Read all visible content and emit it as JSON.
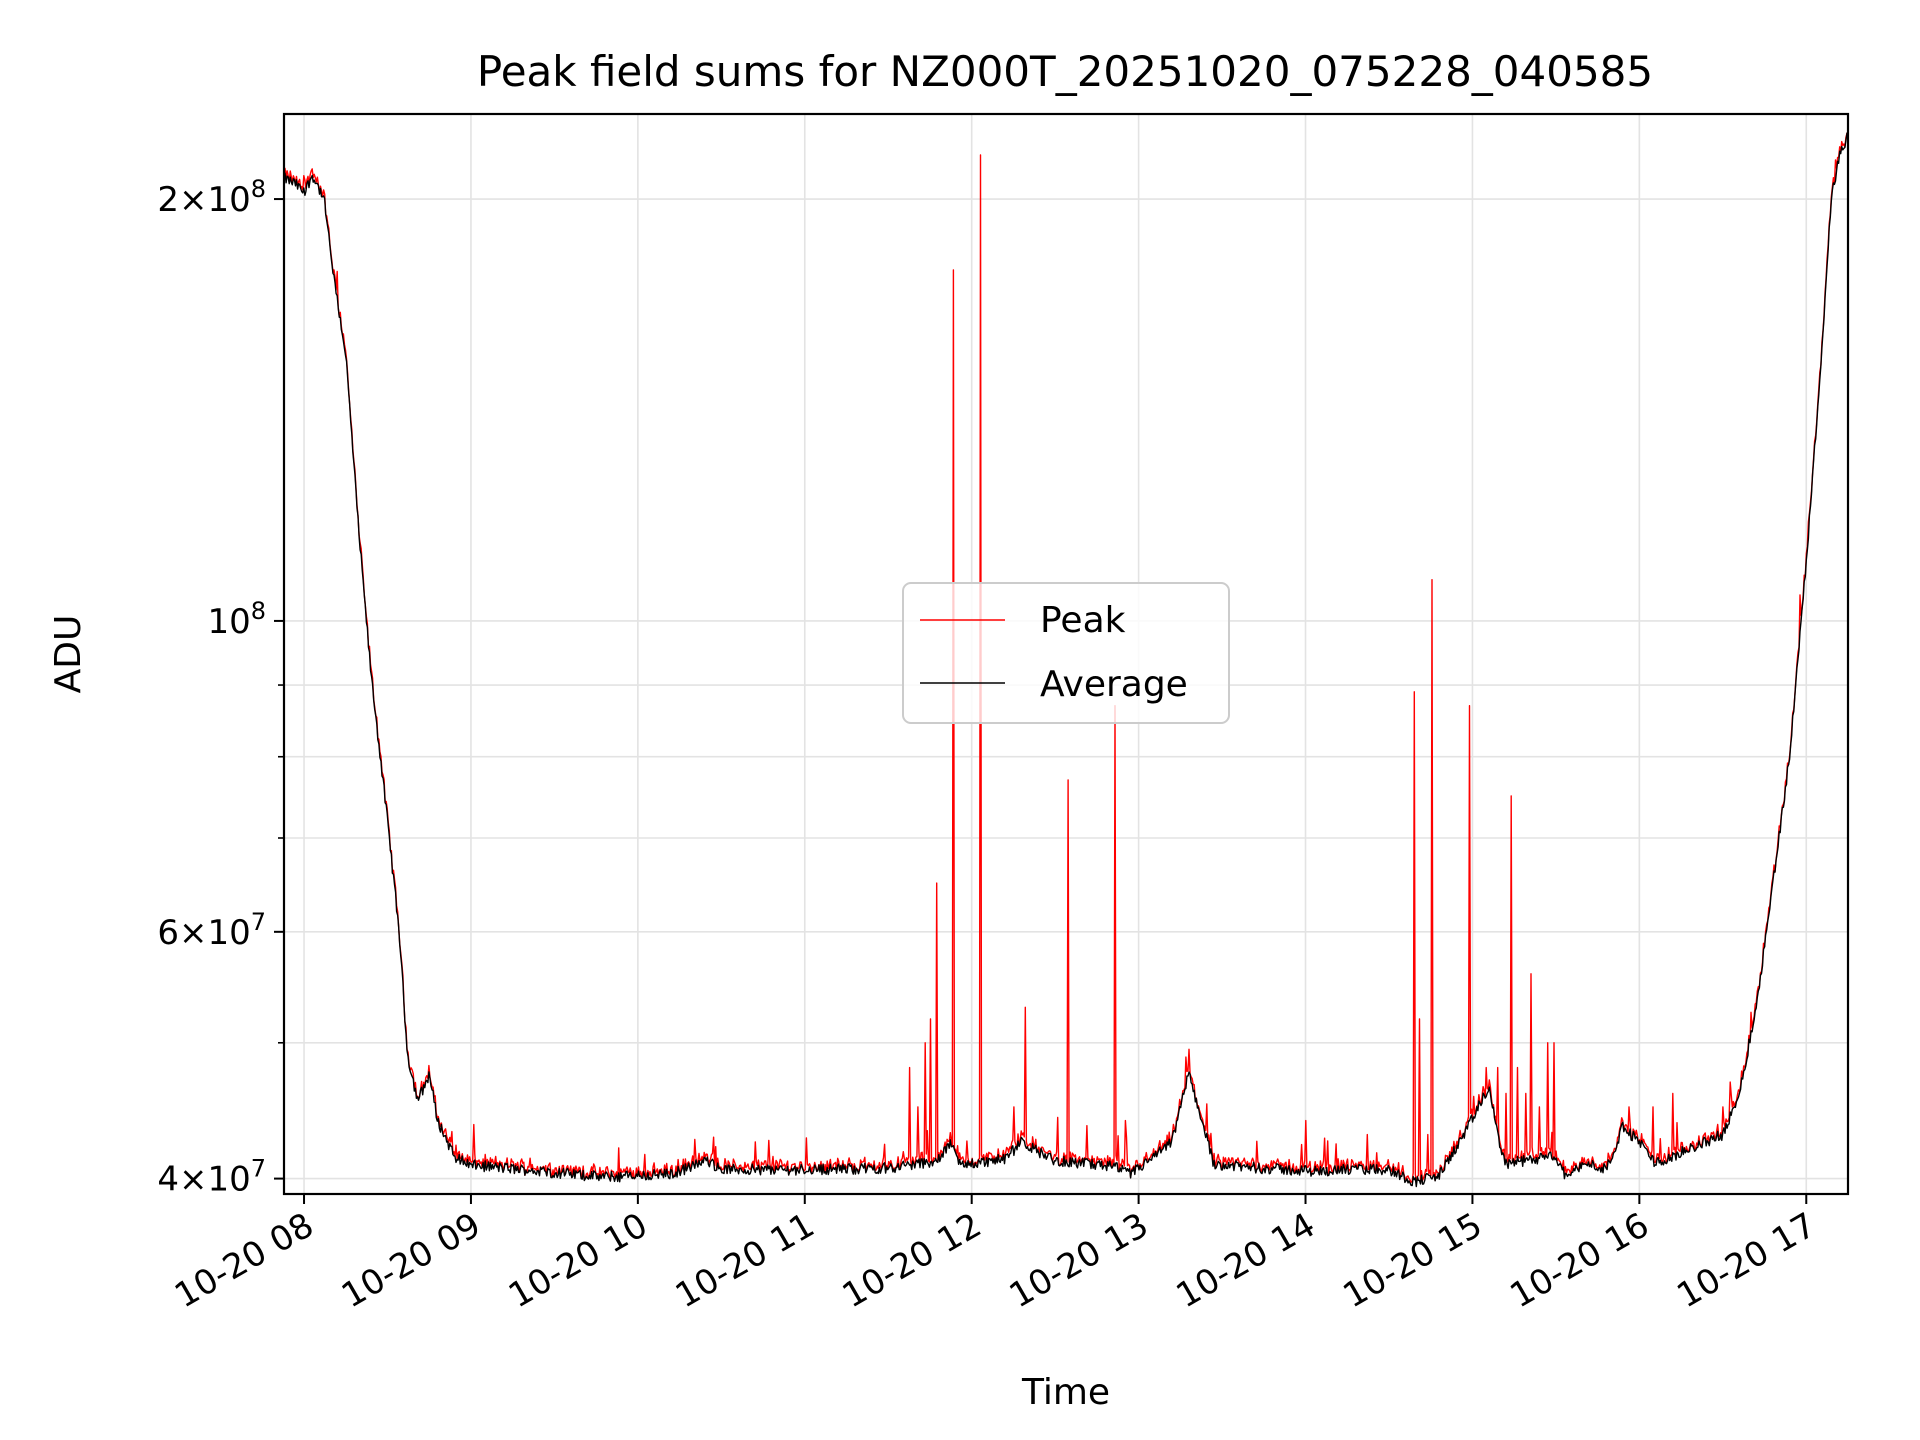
{
  "chart_data": {
    "type": "line",
    "title": "Peak field sums for NZ000T_20251020_075228_040585",
    "xlabel": "Time",
    "ylabel": "ADU",
    "yscale": "log",
    "grid": true,
    "legend_position": "center",
    "xlim_hours": [
      7.88,
      17.25
    ],
    "ylim": [
      39000000,
      230000000
    ],
    "x_ticks": [
      {
        "hour": 8,
        "label": "10-20 08"
      },
      {
        "hour": 9,
        "label": "10-20 09"
      },
      {
        "hour": 10,
        "label": "10-20 10"
      },
      {
        "hour": 11,
        "label": "10-20 11"
      },
      {
        "hour": 12,
        "label": "10-20 12"
      },
      {
        "hour": 13,
        "label": "10-20 13"
      },
      {
        "hour": 14,
        "label": "10-20 14"
      },
      {
        "hour": 15,
        "label": "10-20 15"
      },
      {
        "hour": 16,
        "label": "10-20 16"
      },
      {
        "hour": 17,
        "label": "10-20 17"
      }
    ],
    "y_major_ticks": [
      {
        "value": 40000000,
        "mantissa": "4",
        "exp": "7"
      },
      {
        "value": 60000000,
        "mantissa": "6",
        "exp": "7"
      },
      {
        "value": 100000000,
        "mantissa": "",
        "exp": "8"
      },
      {
        "value": 200000000,
        "mantissa": "2",
        "exp": "8"
      }
    ],
    "y_minor_ticks": [
      50000000,
      70000000,
      80000000,
      90000000
    ],
    "series": [
      {
        "name": "Peak",
        "color": "#ff0000",
        "spikes": [
          [
            11.63,
            48000000
          ],
          [
            11.68,
            45000000
          ],
          [
            11.72,
            50000000
          ],
          [
            11.75,
            52000000
          ],
          [
            11.79,
            65000000
          ],
          [
            11.89,
            178000000
          ],
          [
            12.05,
            215000000
          ],
          [
            12.25,
            45000000
          ],
          [
            12.32,
            53000000
          ],
          [
            12.58,
            77000000
          ],
          [
            12.86,
            87000000
          ],
          [
            12.92,
            44000000
          ],
          [
            14.0,
            44000000
          ],
          [
            14.37,
            43000000
          ],
          [
            14.65,
            89000000
          ],
          [
            14.68,
            52000000
          ],
          [
            14.73,
            43000000
          ],
          [
            14.76,
            107000000
          ],
          [
            14.98,
            87000000
          ],
          [
            15.08,
            48000000
          ],
          [
            15.15,
            48000000
          ],
          [
            15.2,
            46000000
          ],
          [
            15.23,
            75000000
          ],
          [
            15.27,
            48000000
          ],
          [
            15.32,
            46000000
          ],
          [
            15.35,
            56000000
          ],
          [
            15.4,
            45000000
          ],
          [
            15.45,
            50000000
          ],
          [
            15.49,
            50000000
          ],
          [
            16.08,
            45000000
          ],
          [
            16.2,
            46000000
          ],
          [
            16.5,
            45000000
          ]
        ]
      },
      {
        "name": "Average",
        "color": "#000000",
        "points": [
          [
            7.88,
            207000000
          ],
          [
            7.95,
            205000000
          ],
          [
            8.0,
            202000000
          ],
          [
            8.05,
            208000000
          ],
          [
            8.12,
            200000000
          ],
          [
            8.18,
            175000000
          ],
          [
            8.25,
            155000000
          ],
          [
            8.33,
            115000000
          ],
          [
            8.4,
            92000000
          ],
          [
            8.5,
            72000000
          ],
          [
            8.57,
            60000000
          ],
          [
            8.62,
            49000000
          ],
          [
            8.68,
            45500000
          ],
          [
            8.72,
            46500000
          ],
          [
            8.75,
            47500000
          ],
          [
            8.8,
            44000000
          ],
          [
            8.9,
            41500000
          ],
          [
            9.0,
            40900000
          ],
          [
            9.2,
            40700000
          ],
          [
            9.5,
            40400000
          ],
          [
            9.8,
            40100000
          ],
          [
            10.2,
            40300000
          ],
          [
            10.42,
            41200000
          ],
          [
            10.5,
            40600000
          ],
          [
            11.0,
            40600000
          ],
          [
            11.5,
            40700000
          ],
          [
            11.8,
            41200000
          ],
          [
            11.88,
            42500000
          ],
          [
            11.92,
            41000000
          ],
          [
            12.0,
            41000000
          ],
          [
            12.2,
            41300000
          ],
          [
            12.3,
            42500000
          ],
          [
            12.4,
            41800000
          ],
          [
            12.5,
            41200000
          ],
          [
            12.85,
            40800000
          ],
          [
            12.95,
            40300000
          ],
          [
            13.1,
            41500000
          ],
          [
            13.2,
            42500000
          ],
          [
            13.3,
            47500000
          ],
          [
            13.38,
            44000000
          ],
          [
            13.45,
            41000000
          ],
          [
            13.6,
            40800000
          ],
          [
            14.0,
            40500000
          ],
          [
            14.3,
            40600000
          ],
          [
            14.5,
            40600000
          ],
          [
            14.65,
            39800000
          ],
          [
            14.8,
            40200000
          ],
          [
            14.95,
            43000000
          ],
          [
            15.1,
            46500000
          ],
          [
            15.15,
            43000000
          ],
          [
            15.2,
            41000000
          ],
          [
            15.5,
            41500000
          ],
          [
            15.55,
            40300000
          ],
          [
            15.7,
            41000000
          ],
          [
            15.8,
            40600000
          ],
          [
            15.9,
            43500000
          ],
          [
            16.0,
            42500000
          ],
          [
            16.1,
            41000000
          ],
          [
            16.2,
            41500000
          ],
          [
            16.3,
            42000000
          ],
          [
            16.5,
            43000000
          ],
          [
            16.6,
            46000000
          ],
          [
            16.7,
            53000000
          ],
          [
            16.8,
            65000000
          ],
          [
            16.9,
            80000000
          ],
          [
            17.0,
            110000000
          ],
          [
            17.1,
            160000000
          ],
          [
            17.15,
            200000000
          ],
          [
            17.2,
            215000000
          ],
          [
            17.25,
            222000000
          ]
        ]
      }
    ]
  }
}
